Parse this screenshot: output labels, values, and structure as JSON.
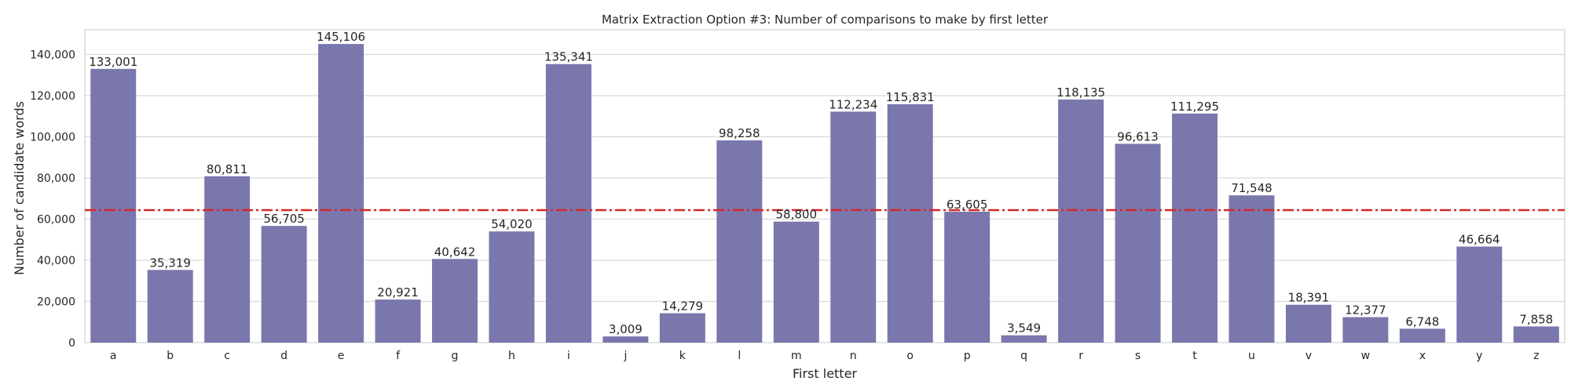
{
  "chart_data": {
    "type": "bar",
    "title": "Matrix Extraction Option #3: Number of comparisons to make by first letter",
    "xlabel": "First letter",
    "ylabel": "Number of candidate words",
    "categories": [
      "a",
      "b",
      "c",
      "d",
      "e",
      "f",
      "g",
      "h",
      "i",
      "j",
      "k",
      "l",
      "m",
      "n",
      "o",
      "p",
      "q",
      "r",
      "s",
      "t",
      "u",
      "v",
      "w",
      "x",
      "y",
      "z"
    ],
    "values": [
      133001,
      35319,
      80811,
      56705,
      145106,
      20921,
      40642,
      54020,
      135341,
      3009,
      14279,
      98258,
      58800,
      112234,
      115831,
      63605,
      3549,
      118135,
      96613,
      111295,
      71548,
      18391,
      12377,
      6748,
      46664,
      7858
    ],
    "value_labels": [
      "133,001",
      "35,319",
      "80,811",
      "56,705",
      "145,106",
      "20,921",
      "40,642",
      "54,020",
      "135,341",
      "3,009",
      "14,279",
      "98,258",
      "58,800",
      "112,234",
      "115,831",
      "63,605",
      "3,549",
      "118,135",
      "96,613",
      "111,295",
      "71,548",
      "18,391",
      "12,377",
      "6,748",
      "46,664",
      "7,858"
    ],
    "ylim": [
      0,
      152000
    ],
    "yticks": [
      0,
      20000,
      40000,
      60000,
      80000,
      100000,
      120000,
      140000
    ],
    "ytick_labels": [
      "0",
      "20,000",
      "40,000",
      "60,000",
      "80,000",
      "100,000",
      "120,000",
      "140,000"
    ],
    "reference_line": {
      "value": 64371,
      "color": "#d62728",
      "style": "dash-dot"
    },
    "bar_color": "#7a77ad",
    "grid": true,
    "legend": false
  }
}
